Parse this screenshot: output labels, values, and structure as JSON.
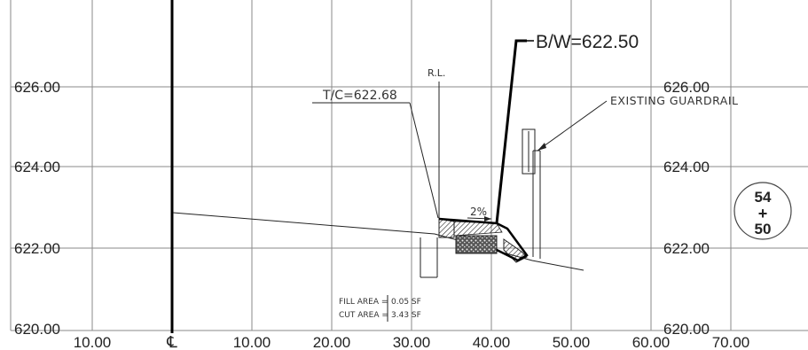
{
  "station": {
    "top": "54",
    "plus": "+",
    "bottom": "50"
  },
  "centerline_symbol": "℄",
  "elevation_labels_left": [
    "626.00",
    "624.00",
    "622.00",
    "620.00"
  ],
  "elevation_labels_right": [
    "626.00",
    "624.00",
    "622.00",
    "620.00"
  ],
  "offset_labels": [
    "10.00",
    "10.00",
    "20.00",
    "30.00",
    "40.00",
    "50.00",
    "60.00",
    "70.00"
  ],
  "annotations": {
    "bw": "B/W=622.50",
    "tc": "T/C=622.68",
    "rl": "R.L.",
    "guardrail": "EXISTING GUARDRAIL",
    "slope": "2%",
    "fill_area_label": "FILL AREA =",
    "fill_area_value": "0.05 SF",
    "cut_area_label": "CUT AREA =",
    "cut_area_value": "3.43 SF"
  },
  "colors": {
    "grid": "#8a8a8a",
    "ink": "#111111",
    "paper": "#ffffff"
  }
}
